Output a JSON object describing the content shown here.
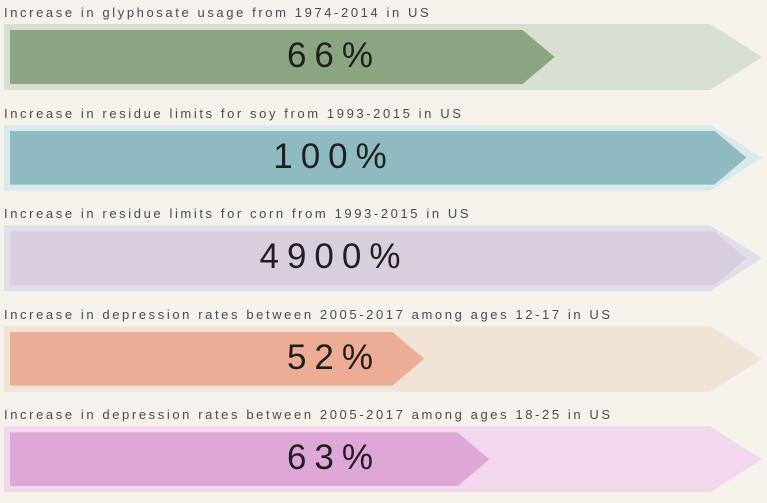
{
  "page": {
    "background": "#f5f1eb",
    "label_color": "#4b4b4b",
    "value_color": "#1f1f1f"
  },
  "chart_data": {
    "type": "bar",
    "orientation": "horizontal",
    "unit": "%",
    "legend": "none",
    "axes": "none",
    "bar_style": "arrow-pointer over lighter arrow track",
    "rows": [
      {
        "label": "Increase in glyphosate usage from 1974-2014 in US",
        "value": 66,
        "value_label": "66%",
        "bar_color": "#8ca581",
        "track_color": "#d6dfd1",
        "bar_width_pct": 71
      },
      {
        "label": "Increase in residue limits for soy from 1993-2015 in US",
        "value": 100,
        "value_label": "100%",
        "bar_color": "#8fbac1",
        "track_color": "#d8eaec",
        "bar_width_pct": 96
      },
      {
        "label": "Increase in residue limits for corn from 1993-2015 in US",
        "value": 4900,
        "value_label": "4900%",
        "bar_color": "#d9cede",
        "track_color": "#dfdeea",
        "bar_width_pct": 96
      },
      {
        "label": "Increase in depression rates between 2005-2017 among ages 12-17 in US",
        "value": 52,
        "value_label": "52%",
        "bar_color": "#ecad94",
        "track_color": "#f2e3d7",
        "bar_width_pct": 54
      },
      {
        "label": "Increase in depression rates between 2005-2017 among ages 18-25 in US",
        "value": 63,
        "value_label": "63%",
        "bar_color": "#dfa7d7",
        "track_color": "#f2d7ed",
        "bar_width_pct": 62.5
      }
    ]
  }
}
